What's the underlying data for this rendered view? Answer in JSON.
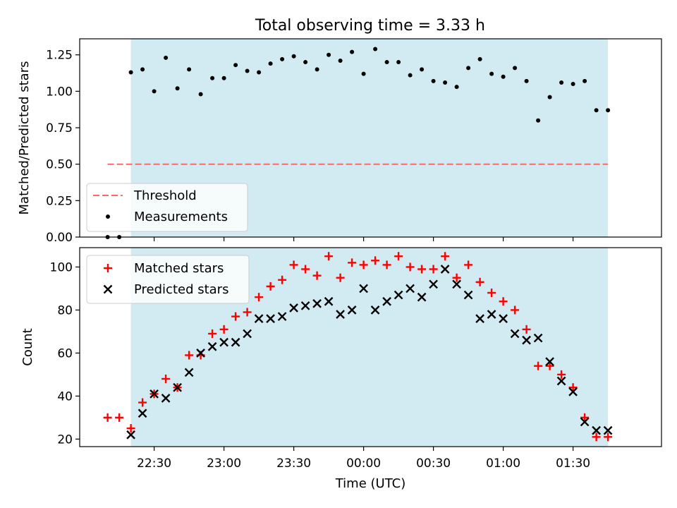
{
  "title": "Total observing time = 3.33 h",
  "colors": {
    "shade": "#add8e6",
    "threshold": "#ff6666",
    "matched": "#ff0000",
    "predicted": "#000000",
    "measurement": "#000000"
  },
  "chart_data": [
    {
      "type": "scatter",
      "panel": "top",
      "ylabel": "Matched/Predicted stars",
      "ylim": [
        0,
        1.36
      ],
      "yticks": [
        0.0,
        0.25,
        0.5,
        0.75,
        1.0,
        1.25
      ],
      "ytick_labels": [
        "0.00",
        "0.25",
        "0.50",
        "0.75",
        "1.00",
        "1.25"
      ],
      "shaded_span": [
        "22:20",
        "01:45"
      ],
      "threshold": {
        "name": "Threshold",
        "value": 0.5,
        "x_range": [
          "22:10",
          "01:45"
        ]
      },
      "series": [
        {
          "name": "Measurements",
          "x": [
            "22:10",
            "22:15",
            "22:20",
            "22:25",
            "22:30",
            "22:35",
            "22:40",
            "22:45",
            "22:50",
            "22:55",
            "23:00",
            "23:05",
            "23:10",
            "23:15",
            "23:20",
            "23:25",
            "23:30",
            "23:35",
            "23:40",
            "23:45",
            "23:50",
            "23:55",
            "00:00",
            "00:05",
            "00:10",
            "00:15",
            "00:20",
            "00:25",
            "00:30",
            "00:35",
            "00:40",
            "00:45",
            "00:50",
            "00:55",
            "01:00",
            "01:05",
            "01:10",
            "01:15",
            "01:20",
            "01:25",
            "01:30",
            "01:35",
            "01:40",
            "01:45"
          ],
          "y": [
            0.0,
            0.0,
            1.13,
            1.15,
            1.0,
            1.23,
            1.02,
            1.15,
            0.98,
            1.09,
            1.09,
            1.18,
            1.14,
            1.13,
            1.19,
            1.22,
            1.24,
            1.2,
            1.15,
            1.25,
            1.21,
            1.27,
            1.12,
            1.29,
            1.2,
            1.2,
            1.11,
            1.15,
            1.07,
            1.06,
            1.03,
            1.16,
            1.22,
            1.12,
            1.1,
            1.16,
            1.07,
            0.8,
            0.96,
            1.06,
            1.05,
            1.07,
            0.87,
            0.87
          ]
        }
      ],
      "legend": {
        "position": "lower-left",
        "entries": [
          "Threshold",
          "Measurements"
        ]
      }
    },
    {
      "type": "scatter",
      "panel": "bottom",
      "xlabel": "Time (UTC)",
      "ylabel": "Count",
      "ylim": [
        16.5,
        109
      ],
      "yticks": [
        20,
        40,
        60,
        80,
        100
      ],
      "ytick_labels": [
        "20",
        "40",
        "60",
        "80",
        "100"
      ],
      "xticks": [
        "22:30",
        "23:00",
        "23:30",
        "00:00",
        "00:30",
        "01:00",
        "01:30"
      ],
      "xtick_labels": [
        "22:30",
        "23:00",
        "23:30",
        "00:00",
        "00:30",
        "01:00",
        "01:30"
      ],
      "xlim": [
        "21:58",
        "02:08"
      ],
      "shaded_span": [
        "22:20",
        "01:45"
      ],
      "series": [
        {
          "name": "Matched stars",
          "x": [
            "22:10",
            "22:15",
            "22:20",
            "22:25",
            "22:30",
            "22:35",
            "22:40",
            "22:45",
            "22:50",
            "22:55",
            "23:00",
            "23:05",
            "23:10",
            "23:15",
            "23:20",
            "23:25",
            "23:30",
            "23:35",
            "23:40",
            "23:45",
            "23:50",
            "23:55",
            "00:00",
            "00:05",
            "00:10",
            "00:15",
            "00:20",
            "00:25",
            "00:30",
            "00:35",
            "00:40",
            "00:45",
            "00:50",
            "00:55",
            "01:00",
            "01:05",
            "01:10",
            "01:15",
            "01:20",
            "01:25",
            "01:30",
            "01:35",
            "01:40",
            "01:45"
          ],
          "y": [
            30,
            30,
            25,
            37,
            41,
            48,
            44,
            59,
            59,
            69,
            71,
            77,
            79,
            86,
            91,
            94,
            101,
            99,
            96,
            105,
            95,
            102,
            101,
            103,
            101,
            105,
            100,
            99,
            99,
            105,
            95,
            101,
            93,
            88,
            84,
            80,
            71,
            54,
            54,
            50,
            44,
            30,
            21,
            21
          ]
        },
        {
          "name": "Predicted stars",
          "x": [
            "22:20",
            "22:25",
            "22:30",
            "22:35",
            "22:40",
            "22:45",
            "22:50",
            "22:55",
            "23:00",
            "23:05",
            "23:10",
            "23:15",
            "23:20",
            "23:25",
            "23:30",
            "23:35",
            "23:40",
            "23:45",
            "23:50",
            "23:55",
            "00:00",
            "00:05",
            "00:10",
            "00:15",
            "00:20",
            "00:25",
            "00:30",
            "00:35",
            "00:40",
            "00:45",
            "00:50",
            "00:55",
            "01:00",
            "01:05",
            "01:10",
            "01:15",
            "01:20",
            "01:25",
            "01:30",
            "01:35",
            "01:40",
            "01:45"
          ],
          "y": [
            22,
            32,
            41,
            39,
            44,
            51,
            60,
            63,
            65,
            65,
            69,
            76,
            76,
            77,
            81,
            82,
            83,
            84,
            78,
            80,
            90,
            80,
            84,
            87,
            90,
            86,
            92,
            99,
            92,
            87,
            76,
            78,
            76,
            69,
            66,
            67,
            56,
            47,
            42,
            28,
            24,
            24
          ]
        }
      ],
      "legend": {
        "position": "upper-left",
        "entries": [
          "Matched stars",
          "Predicted stars"
        ]
      }
    }
  ]
}
